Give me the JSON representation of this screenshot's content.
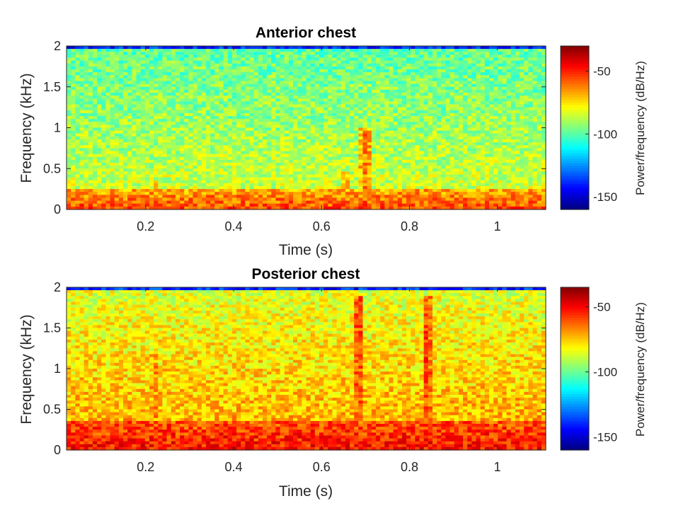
{
  "chart_data": [
    {
      "type": "heatmap",
      "title": "Anterior chest",
      "xlabel": "Time (s)",
      "ylabel": "Frequency (kHz)",
      "xlim": [
        0.02,
        1.11
      ],
      "ylim": [
        0,
        2
      ],
      "xticks": [
        0.2,
        0.4,
        0.6,
        0.8,
        1
      ],
      "xtick_labels": [
        "0.2",
        "0.4",
        "0.6",
        "0.8",
        "1"
      ],
      "yticks": [
        0,
        0.5,
        1,
        1.5,
        2
      ],
      "ytick_labels": [
        "0",
        "0.5",
        "1",
        "1.5",
        "2"
      ],
      "colorbar": {
        "label": "Power/frequency (dB/Hz)",
        "clim": [
          -160,
          -30
        ],
        "ticks": [
          -50,
          -100,
          -150
        ],
        "tick_labels": [
          "-50",
          "-100",
          "-150"
        ],
        "colormap": "jet"
      },
      "background_level_db": -95,
      "low_frequency_band": {
        "max_khz": 0.25,
        "level_db": -55
      },
      "transients": [
        {
          "time_s": 0.7,
          "freq_max_khz": 1.0,
          "level_db": -62
        },
        {
          "time_s": 0.655,
          "freq_max_khz": 0.45,
          "level_db": -70
        },
        {
          "time_s": 0.22,
          "freq_max_khz": 0.35,
          "level_db": -72
        }
      ]
    },
    {
      "type": "heatmap",
      "title": "Posterior chest",
      "xlabel": "Time (s)",
      "ylabel": "Frequency (kHz)",
      "xlim": [
        0.02,
        1.11
      ],
      "ylim": [
        0,
        2
      ],
      "xticks": [
        0.2,
        0.4,
        0.6,
        0.8,
        1
      ],
      "xtick_labels": [
        "0.2",
        "0.4",
        "0.6",
        "0.8",
        "1"
      ],
      "yticks": [
        0,
        0.5,
        1,
        1.5,
        2
      ],
      "ytick_labels": [
        "0",
        "0.5",
        "1",
        "1.5",
        "2"
      ],
      "colorbar": {
        "label": "Power/frequency (dB/Hz)",
        "clim": [
          -160,
          -35
        ],
        "ticks": [
          -50,
          -100,
          -150
        ],
        "tick_labels": [
          "-50",
          "-100",
          "-150"
        ],
        "colormap": "jet"
      },
      "background_level_db": -82,
      "low_frequency_band": {
        "max_khz": 0.35,
        "level_db": -52
      },
      "transients": [
        {
          "time_s": 0.685,
          "freq_max_khz": 1.9,
          "level_db": -58
        },
        {
          "time_s": 0.84,
          "freq_max_khz": 1.9,
          "level_db": -58
        },
        {
          "time_s": 0.22,
          "freq_max_khz": 1.2,
          "level_db": -68
        }
      ]
    }
  ]
}
